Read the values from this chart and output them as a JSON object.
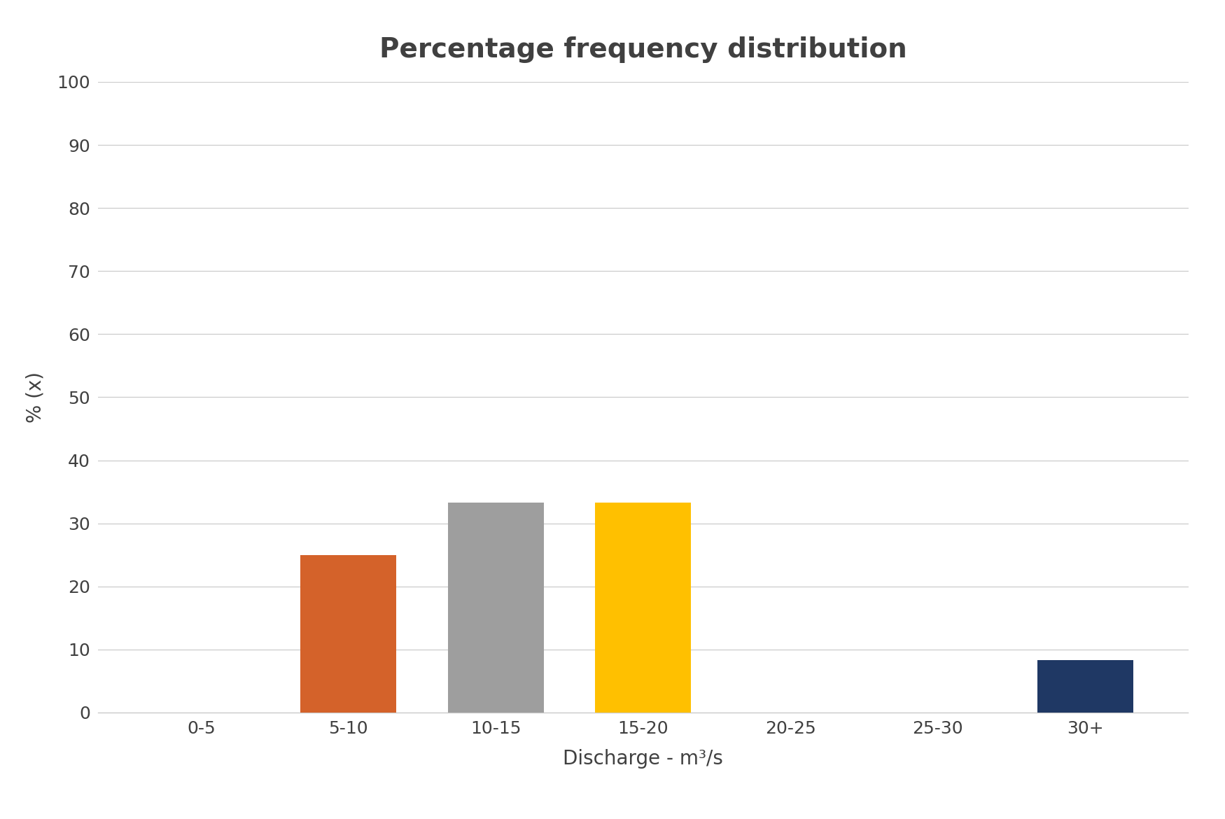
{
  "title": "Percentage frequency distribution",
  "xlabel": "Discharge - m³/s",
  "ylabel": "% (x)",
  "categories": [
    "0-5",
    "5-10",
    "10-15",
    "15-20",
    "20-25",
    "25-30",
    "30+"
  ],
  "values": [
    0,
    25,
    33.33,
    33.33,
    0,
    0,
    8.33
  ],
  "bar_colors": [
    "#ffffff",
    "#d4622a",
    "#9e9e9e",
    "#ffc000",
    "#ffffff",
    "#ffffff",
    "#1f3864"
  ],
  "ylim": [
    0,
    100
  ],
  "yticks": [
    0,
    10,
    20,
    30,
    40,
    50,
    60,
    70,
    80,
    90,
    100
  ],
  "background_color": "#ffffff",
  "title_fontsize": 28,
  "axis_label_fontsize": 20,
  "tick_fontsize": 18,
  "bar_width": 0.65,
  "grid_color": "#cccccc",
  "title_color": "#404040",
  "label_color": "#404040",
  "tick_color": "#404040"
}
